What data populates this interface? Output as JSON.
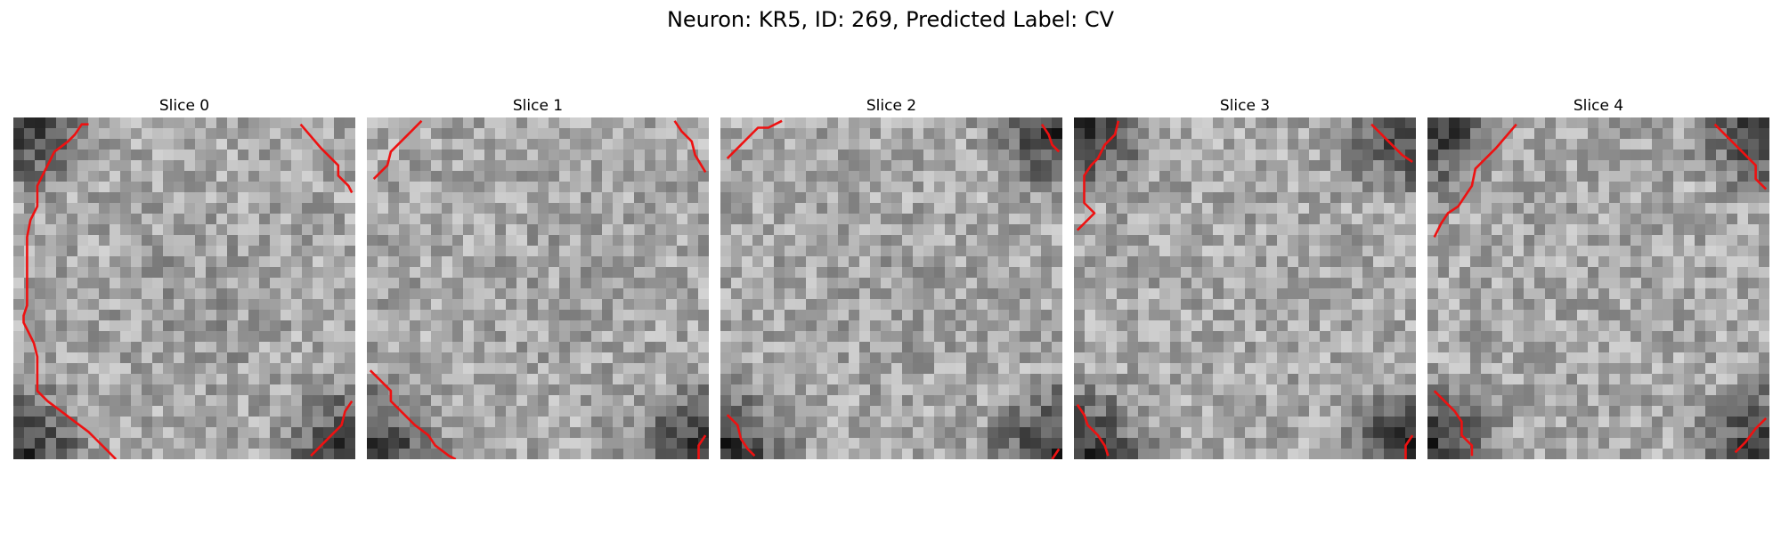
{
  "figure": {
    "title": "Neuron: KR5, ID: 269, Predicted Label: CV"
  },
  "panels": [
    {
      "label": "Slice 0",
      "seed": 11,
      "dark_corners": [
        1,
        0,
        1,
        1
      ],
      "dark_center": 0.25,
      "contour": [
        [
          0.22,
          0.02
        ],
        [
          0.2,
          0.02
        ],
        [
          0.18,
          0.05
        ],
        [
          0.16,
          0.07
        ],
        [
          0.12,
          0.1
        ],
        [
          0.1,
          0.14
        ],
        [
          0.08,
          0.18
        ],
        [
          0.07,
          0.2
        ],
        [
          0.07,
          0.26
        ],
        [
          0.05,
          0.3
        ],
        [
          0.04,
          0.35
        ],
        [
          0.04,
          0.55
        ],
        [
          0.03,
          0.58
        ],
        [
          0.03,
          0.6
        ],
        [
          0.04,
          0.62
        ],
        [
          0.06,
          0.66
        ],
        [
          0.07,
          0.7
        ],
        [
          0.07,
          0.8
        ],
        [
          0.1,
          0.83
        ],
        [
          0.14,
          0.86
        ],
        [
          0.18,
          0.89
        ],
        [
          0.22,
          0.92
        ],
        [
          0.24,
          0.94
        ],
        [
          0.26,
          0.96
        ],
        [
          0.3,
          1.0
        ]
      ],
      "contour2": [
        [
          0.84,
          0.02
        ],
        [
          0.9,
          0.09
        ],
        [
          0.95,
          0.14
        ],
        [
          0.95,
          0.17
        ],
        [
          0.98,
          0.2
        ],
        [
          0.99,
          0.22
        ]
      ],
      "contour3": [
        [
          0.87,
          0.99
        ],
        [
          0.9,
          0.96
        ],
        [
          0.93,
          0.93
        ],
        [
          0.96,
          0.9
        ],
        [
          0.97,
          0.86
        ],
        [
          0.99,
          0.83
        ]
      ]
    },
    {
      "label": "Slice 1",
      "seed": 23,
      "dark_corners": [
        0,
        0,
        1,
        1
      ],
      "dark_center": 0.1,
      "contour": [
        [
          0.16,
          0.01
        ],
        [
          0.13,
          0.04
        ],
        [
          0.1,
          0.07
        ],
        [
          0.07,
          0.1
        ],
        [
          0.06,
          0.14
        ],
        [
          0.02,
          0.18
        ]
      ],
      "contour2": [
        [
          0.9,
          0.01
        ],
        [
          0.92,
          0.04
        ],
        [
          0.95,
          0.07
        ],
        [
          0.96,
          0.11
        ],
        [
          0.99,
          0.16
        ]
      ],
      "contour3": [
        [
          0.01,
          0.74
        ],
        [
          0.04,
          0.77
        ],
        [
          0.07,
          0.8
        ],
        [
          0.07,
          0.83
        ],
        [
          0.1,
          0.86
        ],
        [
          0.14,
          0.9
        ],
        [
          0.18,
          0.93
        ],
        [
          0.2,
          0.96
        ],
        [
          0.24,
          0.99
        ],
        [
          0.26,
          1.0
        ]
      ],
      "contour4": [
        [
          0.97,
          1.0
        ],
        [
          0.97,
          0.96
        ],
        [
          0.99,
          0.93
        ]
      ]
    },
    {
      "label": "Slice 2",
      "seed": 37,
      "dark_corners": [
        0,
        1,
        1,
        1
      ],
      "dark_center": 0.15,
      "contour": [
        [
          0.02,
          0.12
        ],
        [
          0.05,
          0.09
        ],
        [
          0.08,
          0.06
        ],
        [
          0.11,
          0.03
        ],
        [
          0.14,
          0.03
        ],
        [
          0.18,
          0.01
        ]
      ],
      "contour2": [
        [
          0.94,
          0.02
        ],
        [
          0.96,
          0.05
        ],
        [
          0.97,
          0.08
        ],
        [
          0.99,
          0.1
        ]
      ],
      "contour3": [
        [
          0.02,
          0.87
        ],
        [
          0.05,
          0.9
        ],
        [
          0.06,
          0.94
        ],
        [
          0.08,
          0.97
        ],
        [
          0.1,
          0.99
        ]
      ],
      "contour4": [
        [
          0.97,
          1.0
        ],
        [
          0.99,
          0.97
        ]
      ]
    },
    {
      "label": "Slice 3",
      "seed": 51,
      "dark_corners": [
        1,
        1,
        1,
        1
      ],
      "dark_center": 0.0,
      "contour": [
        [
          0.13,
          0.01
        ],
        [
          0.12,
          0.05
        ],
        [
          0.09,
          0.08
        ],
        [
          0.07,
          0.12
        ],
        [
          0.05,
          0.14
        ],
        [
          0.03,
          0.17
        ],
        [
          0.03,
          0.25
        ],
        [
          0.06,
          0.28
        ],
        [
          0.03,
          0.31
        ],
        [
          0.01,
          0.33
        ]
      ],
      "contour2": [
        [
          0.87,
          0.02
        ],
        [
          0.9,
          0.05
        ],
        [
          0.93,
          0.08
        ],
        [
          0.96,
          0.11
        ],
        [
          0.99,
          0.13
        ]
      ],
      "contour3": [
        [
          0.01,
          0.84
        ],
        [
          0.03,
          0.87
        ],
        [
          0.04,
          0.9
        ],
        [
          0.07,
          0.93
        ],
        [
          0.09,
          0.96
        ],
        [
          0.1,
          0.99
        ]
      ],
      "contour4": [
        [
          0.97,
          1.0
        ],
        [
          0.97,
          0.96
        ],
        [
          0.99,
          0.93
        ]
      ]
    },
    {
      "label": "Slice 4",
      "seed": 67,
      "dark_corners": [
        1,
        1,
        1,
        1
      ],
      "dark_center": 0.0,
      "contour": [
        [
          0.26,
          0.02
        ],
        [
          0.2,
          0.09
        ],
        [
          0.14,
          0.15
        ],
        [
          0.13,
          0.2
        ],
        [
          0.11,
          0.23
        ],
        [
          0.09,
          0.26
        ],
        [
          0.06,
          0.28
        ],
        [
          0.04,
          0.31
        ],
        [
          0.02,
          0.35
        ]
      ],
      "contour2": [
        [
          0.84,
          0.02
        ],
        [
          0.87,
          0.05
        ],
        [
          0.9,
          0.08
        ],
        [
          0.93,
          0.11
        ],
        [
          0.96,
          0.14
        ],
        [
          0.96,
          0.18
        ],
        [
          0.99,
          0.21
        ]
      ],
      "contour3": [
        [
          0.02,
          0.8
        ],
        [
          0.05,
          0.83
        ],
        [
          0.08,
          0.86
        ],
        [
          0.1,
          0.89
        ],
        [
          0.1,
          0.93
        ],
        [
          0.13,
          0.96
        ],
        [
          0.13,
          0.99
        ]
      ],
      "contour4": [
        [
          0.9,
          0.98
        ],
        [
          0.93,
          0.95
        ],
        [
          0.96,
          0.91
        ],
        [
          0.99,
          0.88
        ]
      ]
    }
  ],
  "colors": {
    "contour": "#ee1111"
  }
}
